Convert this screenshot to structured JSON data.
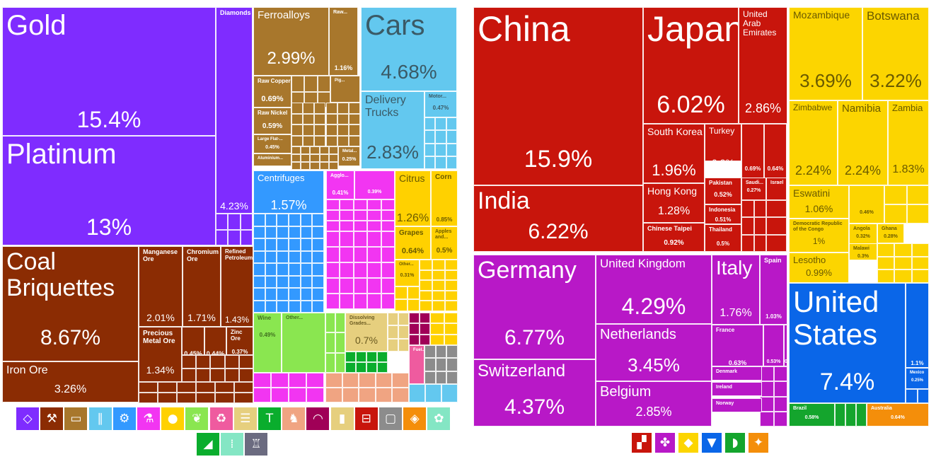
{
  "chart_data": [
    {
      "type": "treemap",
      "title": "",
      "colors": {
        "precious_stones": "#7f2cff",
        "minerals": "#8b2c03",
        "metals": "#a8772c",
        "transportation": "#63c8ef",
        "machines": "#3399ff",
        "chemicals": "#f235f2",
        "vegetable_products": "#ffd100",
        "paper_goods": "#e6cf7e",
        "textiles": "#8ae650",
        "plastics": "#ef5b9f",
        "instruments": "#a00057",
        "weapons": "#8c8c8c",
        "animal_hides": "#f0a482",
        "footwear": "#0aad2d"
      },
      "tiles": [
        {
          "label": "Gold",
          "value": "15.4%",
          "category": "precious_stones"
        },
        {
          "label": "Platinum",
          "value": "13%",
          "category": "precious_stones"
        },
        {
          "label": "Diamonds",
          "value": "4.23%",
          "category": "precious_stones"
        },
        {
          "label": "Coal Briquettes",
          "value": "8.67%",
          "category": "minerals"
        },
        {
          "label": "Iron Ore",
          "value": "3.26%",
          "category": "minerals"
        },
        {
          "label": "Manganese Ore",
          "value": "2.01%",
          "category": "minerals"
        },
        {
          "label": "Chromium Ore",
          "value": "1.71%",
          "category": "minerals"
        },
        {
          "label": "Refined Petroleum",
          "value": "1.43%",
          "category": "minerals"
        },
        {
          "label": "Precious Metal Ore",
          "value": "1.34%",
          "category": "minerals"
        },
        {
          "label": "",
          "value": "0.45%",
          "category": "minerals"
        },
        {
          "label": "",
          "value": "0.44%",
          "category": "minerals"
        },
        {
          "label": "Zinc Ore",
          "value": "0.37%",
          "category": "minerals"
        },
        {
          "label": "Ferroalloys",
          "value": "2.99%",
          "category": "metals"
        },
        {
          "label": "Raw...",
          "value": "1.16%",
          "category": "metals"
        },
        {
          "label": "Raw Copper",
          "value": "0.69%",
          "category": "metals"
        },
        {
          "label": "Raw Nickel",
          "value": "0.59%",
          "category": "metals"
        },
        {
          "label": "Large Flat-...",
          "value": "0.45%",
          "category": "metals"
        },
        {
          "label": "Aluminium...",
          "value": "",
          "category": "metals"
        },
        {
          "label": "Pig...",
          "value": "",
          "category": "metals"
        },
        {
          "label": "Metal...",
          "value": "0.25%",
          "category": "metals"
        },
        {
          "label": "Cars",
          "value": "4.68%",
          "category": "transportation"
        },
        {
          "label": "Delivery Trucks",
          "value": "2.83%",
          "category": "transportation"
        },
        {
          "label": "Motor...",
          "value": "0.47%",
          "category": "transportation"
        },
        {
          "label": "Centrifuges",
          "value": "1.57%",
          "category": "machines"
        },
        {
          "label": "Agglo...",
          "value": "0.41%",
          "category": "chemicals"
        },
        {
          "label": "",
          "value": "0.39%",
          "category": "chemicals"
        },
        {
          "label": "Citrus",
          "value": "1.26%",
          "category": "vegetable_products"
        },
        {
          "label": "Corn",
          "value": "0.85%",
          "category": "vegetable_products"
        },
        {
          "label": "Grapes",
          "value": "0.64%",
          "category": "vegetable_products"
        },
        {
          "label": "Apples and...",
          "value": "0.5%",
          "category": "vegetable_products"
        },
        {
          "label": "Other...",
          "value": "0.31%",
          "category": "vegetable_products"
        },
        {
          "label": "Wine",
          "value": "0.49%",
          "category": "textiles"
        },
        {
          "label": "Other...",
          "value": "",
          "category": "textiles"
        },
        {
          "label": "Dissolving Grades...",
          "value": "0.7%",
          "category": "paper_goods"
        },
        {
          "label": "Fuel...",
          "value": "",
          "category": "plastics"
        }
      ],
      "legend_icons": [
        "diamond-icon",
        "pickaxe-icon",
        "anvil-icon",
        "road-icon",
        "gear-icon",
        "flask-icon",
        "orange-icon",
        "wheat-icon",
        "recycle-icon",
        "document-icon",
        "shirt-icon",
        "animal-hide-icon",
        "gauge-icon",
        "bottle-icon",
        "rifle-icon",
        "box-icon",
        "stone-icon",
        "leather-icon",
        "shoe-icon",
        "bowling-pins-icon",
        "easel-icon"
      ]
    },
    {
      "type": "treemap",
      "title": "",
      "colors": {
        "asia": "#c8150c",
        "africa": "#fcd500",
        "europe": "#b818c7",
        "north_america": "#0a66e8",
        "south_america": "#14a52d",
        "oceania": "#f48e0a"
      },
      "tiles": [
        {
          "label": "China",
          "value": "15.9%",
          "category": "asia"
        },
        {
          "label": "India",
          "value": "6.22%",
          "category": "asia"
        },
        {
          "label": "Japan",
          "value": "6.02%",
          "category": "asia"
        },
        {
          "label": "United Arab Emirates",
          "value": "2.86%",
          "category": "asia"
        },
        {
          "label": "South Korea",
          "value": "1.96%",
          "category": "asia"
        },
        {
          "label": "Turkey",
          "value": "0.9%",
          "category": "asia"
        },
        {
          "label": "",
          "value": "0.69%",
          "category": "asia"
        },
        {
          "label": "",
          "value": "0.64%",
          "category": "asia"
        },
        {
          "label": "Hong Kong",
          "value": "1.28%",
          "category": "asia"
        },
        {
          "label": "Pakistan",
          "value": "0.52%",
          "category": "asia"
        },
        {
          "label": "Saudi...",
          "value": "0.27%",
          "category": "asia"
        },
        {
          "label": "Israel",
          "value": "",
          "category": "asia"
        },
        {
          "label": "Indonesia",
          "value": "0.51%",
          "category": "asia"
        },
        {
          "label": "Chinese Taipei",
          "value": "0.92%",
          "category": "asia"
        },
        {
          "label": "Thailand",
          "value": "0.5%",
          "category": "asia"
        },
        {
          "label": "Mozambique",
          "value": "3.69%",
          "category": "africa"
        },
        {
          "label": "Botswana",
          "value": "3.22%",
          "category": "africa"
        },
        {
          "label": "Zimbabwe",
          "value": "2.24%",
          "category": "africa"
        },
        {
          "label": "Namibia",
          "value": "2.24%",
          "category": "africa"
        },
        {
          "label": "Zambia",
          "value": "1.83%",
          "category": "africa"
        },
        {
          "label": "Eswatini",
          "value": "1.06%",
          "category": "africa"
        },
        {
          "label": "",
          "value": "0.46%",
          "category": "africa"
        },
        {
          "label": "Democratic Republic of the Congo",
          "value": "1%",
          "category": "africa"
        },
        {
          "label": "Angola",
          "value": "0.32%",
          "category": "africa"
        },
        {
          "label": "Ghana",
          "value": "0.28%",
          "category": "africa"
        },
        {
          "label": "Malawi",
          "value": "0.3%",
          "category": "africa"
        },
        {
          "label": "Lesotho",
          "value": "0.99%",
          "category": "africa"
        },
        {
          "label": "Germany",
          "value": "6.77%",
          "category": "europe"
        },
        {
          "label": "Switzerland",
          "value": "4.37%",
          "category": "europe"
        },
        {
          "label": "United Kingdom",
          "value": "4.29%",
          "category": "europe"
        },
        {
          "label": "Netherlands",
          "value": "3.45%",
          "category": "europe"
        },
        {
          "label": "Belgium",
          "value": "2.85%",
          "category": "europe"
        },
        {
          "label": "Italy",
          "value": "1.76%",
          "category": "europe"
        },
        {
          "label": "Spain",
          "value": "1.03%",
          "category": "europe"
        },
        {
          "label": "France",
          "value": "0.63%",
          "category": "europe"
        },
        {
          "label": "",
          "value": "0.53%",
          "category": "europe"
        },
        {
          "label": "",
          "value": "0.51%",
          "category": "europe"
        },
        {
          "label": "Denmark",
          "value": "",
          "category": "europe"
        },
        {
          "label": "Ireland",
          "value": "",
          "category": "europe"
        },
        {
          "label": "Norway",
          "value": "",
          "category": "europe"
        },
        {
          "label": "United States",
          "value": "7.4%",
          "category": "north_america"
        },
        {
          "label": "",
          "value": "1.1%",
          "category": "north_america"
        },
        {
          "label": "Mexico",
          "value": "0.25%",
          "category": "north_america"
        },
        {
          "label": "Brazil",
          "value": "0.58%",
          "category": "south_america"
        },
        {
          "label": "Australia",
          "value": "0.64%",
          "category": "oceania"
        }
      ],
      "legend_icons": [
        "asia-map-icon",
        "europe-map-icon",
        "africa-map-icon",
        "north-america-map-icon",
        "south-america-map-icon",
        "oceania-map-icon"
      ]
    }
  ]
}
